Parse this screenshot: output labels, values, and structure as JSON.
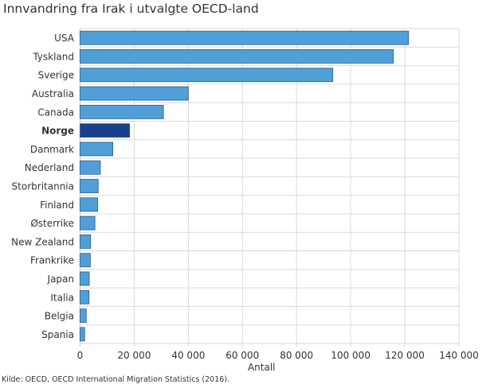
{
  "chart_data": {
    "type": "bar",
    "orientation": "horizontal",
    "title": "Innvandring fra Irak i utvalgte OECD-land",
    "xlabel": "Antall",
    "ylabel": "",
    "xlim": [
      0,
      140000
    ],
    "xticks": [
      0,
      20000,
      40000,
      60000,
      80000,
      100000,
      120000,
      140000
    ],
    "xtick_labels": [
      "0",
      "20 000",
      "40 000",
      "60 000",
      "80 000",
      "100 000",
      "120 000",
      "140 000"
    ],
    "grid": true,
    "categories": [
      "USA",
      "Tyskland",
      "Sverige",
      "Australia",
      "Canada",
      "Norge",
      "Danmark",
      "Nederland",
      "Storbritannia",
      "Finland",
      "Østerrike",
      "New Zealand",
      "Frankrike",
      "Japan",
      "Italia",
      "Belgia",
      "Spania"
    ],
    "values": [
      121400,
      115800,
      93400,
      40000,
      30800,
      18300,
      12100,
      7500,
      6700,
      6500,
      5500,
      3900,
      3800,
      3400,
      3300,
      2300,
      1700
    ],
    "highlight": "Norge",
    "colors": {
      "bar": "#4f9fd9",
      "highlight": "#1a3f8c",
      "grid": "#d9d9d9"
    },
    "source": "Kilde: OECD, OECD International Migration Statistics (2016)."
  }
}
